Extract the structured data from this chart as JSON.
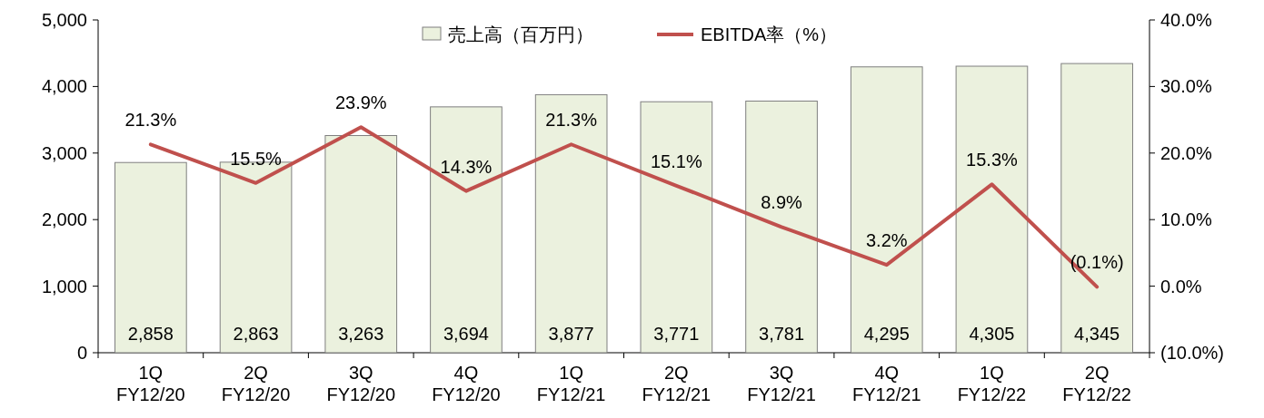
{
  "chart_data": {
    "type": "bar",
    "categories": [
      "1Q\nFY12/20",
      "2Q\nFY12/20",
      "3Q\nFY12/20",
      "4Q\nFY12/20",
      "1Q\nFY12/21",
      "2Q\nFY12/21",
      "3Q\nFY12/21",
      "4Q\nFY12/21",
      "1Q\nFY12/22",
      "2Q\nFY12/22"
    ],
    "series": [
      {
        "name": "売上高（百万円）",
        "color": "#ebf1de",
        "values": [
          2858,
          2863,
          3263,
          3694,
          3877,
          3771,
          3781,
          4295,
          4305,
          4345
        ],
        "value_labels": [
          "2,858",
          "2,863",
          "3,263",
          "3,694",
          "3,877",
          "3,771",
          "3,781",
          "4,295",
          "4,305",
          "4,345"
        ]
      },
      {
        "name": "EBITDA率（%）",
        "type": "line",
        "axis": "y2",
        "color": "#c0504d",
        "values": [
          21.3,
          15.5,
          23.9,
          14.3,
          21.3,
          15.1,
          8.9,
          3.2,
          15.3,
          -0.1
        ],
        "value_labels": [
          "21.3%",
          "15.5%",
          "23.9%",
          "14.3%",
          "21.3%",
          "15.1%",
          "8.9%",
          "3.2%",
          "15.3%",
          "(0.1%)"
        ]
      }
    ],
    "ylim": [
      0,
      5000
    ],
    "yticks": [
      0,
      {
        "value": 1000,
        "label": "1,000"
      },
      {
        "value": 2000,
        "label": "2,000"
      },
      {
        "value": 3000,
        "label": "3,000"
      },
      {
        "value": 4000,
        "label": "4,000"
      },
      {
        "value": 5000,
        "label": "5,000"
      }
    ],
    "y2lim": [
      -10,
      40
    ],
    "y2ticks": [
      {
        "value": -10,
        "label": "(10.0%)"
      },
      {
        "value": 0,
        "label": "0.0%"
      },
      {
        "value": 10,
        "label": "10.0%"
      },
      {
        "value": 20,
        "label": "20.0%"
      },
      {
        "value": 30,
        "label": "30.0%"
      },
      {
        "value": 40,
        "label": "40.0%"
      }
    ],
    "legend": "top"
  }
}
